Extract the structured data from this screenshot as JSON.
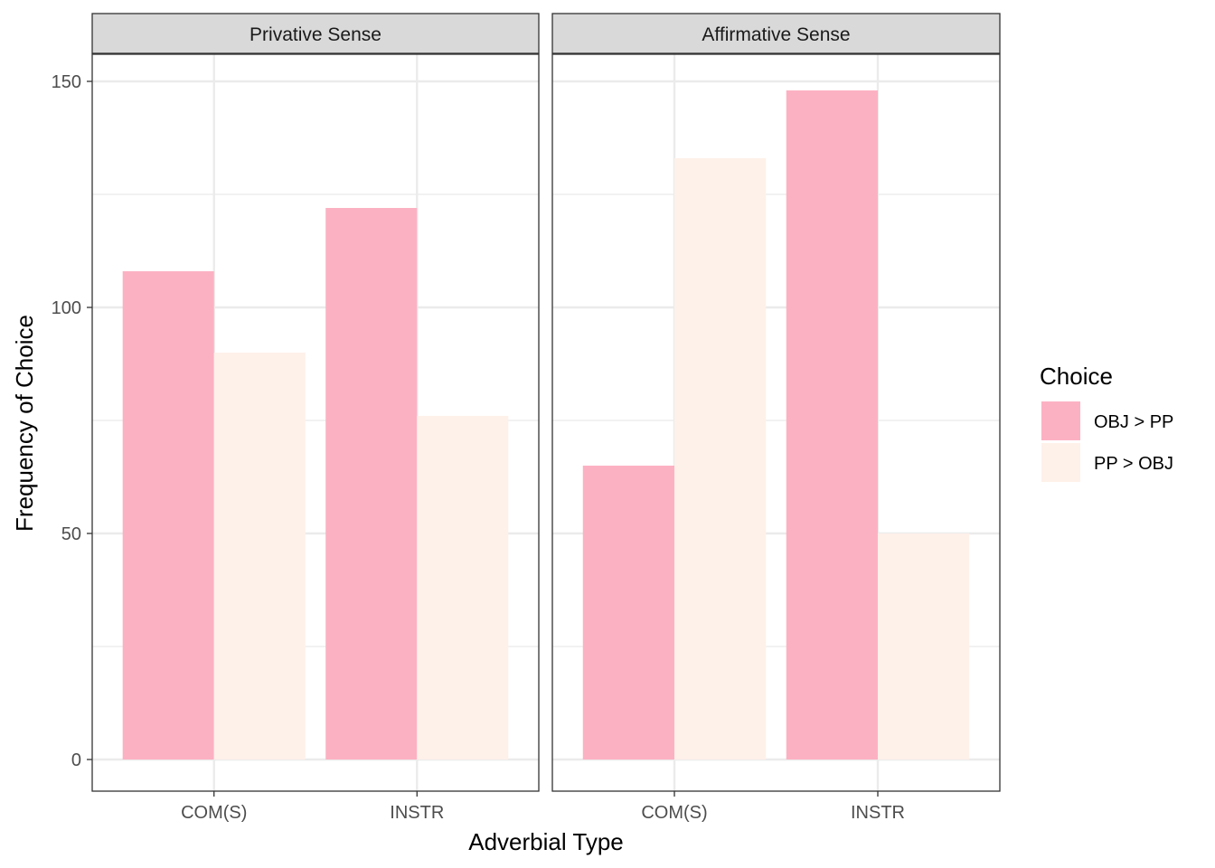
{
  "chart_data": {
    "type": "bar",
    "facets": [
      {
        "label": "Privative Sense",
        "categories": [
          "COM(S)",
          "INSTR"
        ],
        "series": [
          {
            "name": "OBJ > PP",
            "values": [
              108,
              122
            ]
          },
          {
            "name": "PP > OBJ",
            "values": [
              90,
              76
            ]
          }
        ]
      },
      {
        "label": "Affirmative Sense",
        "categories": [
          "COM(S)",
          "INSTR"
        ],
        "series": [
          {
            "name": "OBJ > PP",
            "values": [
              65,
              148
            ]
          },
          {
            "name": "PP > OBJ",
            "values": [
              133,
              50
            ]
          }
        ]
      }
    ],
    "xlabel": "Adverbial Type",
    "ylabel": "Frequency of Choice",
    "ylim": [
      -7,
      156
    ],
    "yticks": [
      0,
      50,
      100,
      150
    ],
    "ytick_labels": [
      "0",
      "50",
      "100",
      "150"
    ],
    "grid": true,
    "legend": {
      "title": "Choice",
      "position": "right",
      "entries": [
        "OBJ > PP",
        "PP > OBJ"
      ]
    },
    "colors": {
      "OBJ > PP": "#FCB1C2",
      "PP > OBJ": "#FEF1E9"
    }
  }
}
